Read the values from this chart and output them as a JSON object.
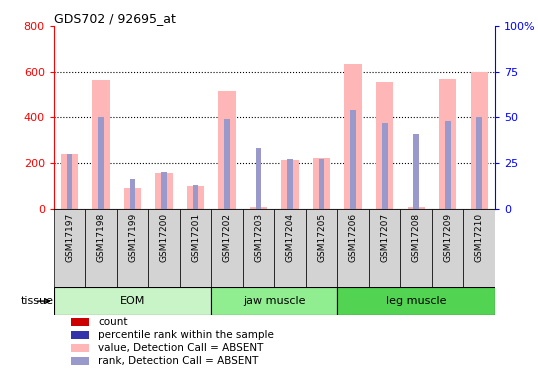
{
  "title": "GDS702 / 92695_at",
  "samples": [
    "GSM17197",
    "GSM17198",
    "GSM17199",
    "GSM17200",
    "GSM17201",
    "GSM17202",
    "GSM17203",
    "GSM17204",
    "GSM17205",
    "GSM17206",
    "GSM17207",
    "GSM17208",
    "GSM17209",
    "GSM17210"
  ],
  "pink_values": [
    240,
    565,
    90,
    155,
    100,
    515,
    5,
    215,
    220,
    635,
    555,
    5,
    570,
    600
  ],
  "blue_values": [
    30,
    50,
    16,
    20,
    13,
    49,
    33,
    27,
    27,
    54,
    47,
    41,
    48,
    50
  ],
  "left_ylim": [
    0,
    800
  ],
  "right_ylim": [
    0,
    100
  ],
  "left_yticks": [
    0,
    200,
    400,
    600,
    800
  ],
  "right_yticks": [
    0,
    25,
    50,
    75,
    100
  ],
  "right_yticklabels": [
    "0",
    "25",
    "50",
    "75",
    "100%"
  ],
  "tissue_groups": [
    {
      "label": "EOM",
      "start": 0,
      "end": 4
    },
    {
      "label": "jaw muscle",
      "start": 5,
      "end": 8
    },
    {
      "label": "leg muscle",
      "start": 9,
      "end": 13
    }
  ],
  "tissue_colors": [
    "#C8F4C8",
    "#90EE90",
    "#52D452"
  ],
  "tissue_label": "tissue",
  "pink_color": "#FFB6B6",
  "blue_color": "#9999CC",
  "dark_red": "#CC0000",
  "dark_blue": "#3333AA",
  "legend_items": [
    {
      "color": "#CC0000",
      "label": "count"
    },
    {
      "color": "#3333AA",
      "label": "percentile rank within the sample"
    },
    {
      "color": "#FFB6B6",
      "label": "value, Detection Call = ABSENT"
    },
    {
      "color": "#9999CC",
      "label": "rank, Detection Call = ABSENT"
    }
  ],
  "xlabels_bg": "#D3D3D3",
  "grid_yticks": [
    200,
    400,
    600
  ]
}
